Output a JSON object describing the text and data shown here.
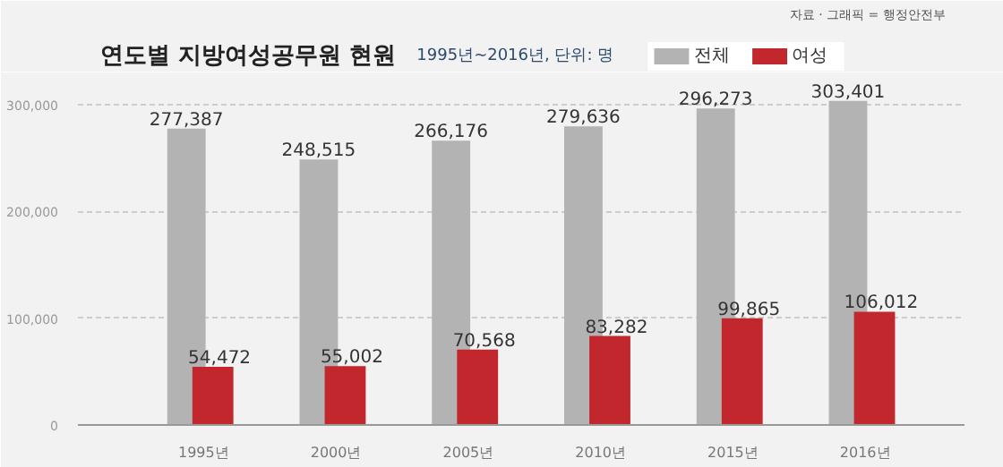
{
  "chart_data": {
    "type": "bar",
    "title": "연도별 지방여성공무원 현원",
    "subtitle": "1995년~2016년, 단위: 명",
    "annotations": [
      "자료 · 그래픽 = 행정안전부"
    ],
    "categories": [
      "1995년",
      "2000년",
      "2005년",
      "2010년",
      "2015년",
      "2016년"
    ],
    "series": [
      {
        "name": "전체",
        "color": "#b3b3b3",
        "values": [
          277387,
          248515,
          266176,
          279636,
          296273,
          303401
        ],
        "value_labels": [
          "277,387",
          "248,515",
          "266,176",
          "279,636",
          "296,273",
          "303,401"
        ]
      },
      {
        "name": "여성",
        "color": "#c1272d",
        "values": [
          54472,
          55002,
          70568,
          83282,
          99865,
          106012
        ],
        "value_labels": [
          "54,472",
          "55,002",
          "70,568",
          "83,282",
          "99,865",
          "106,012"
        ]
      }
    ],
    "ylim": [
      0,
      320000
    ],
    "yticks": [
      0,
      {
        "value": 100000,
        "label": "100,000"
      },
      {
        "value": 200000,
        "label": "200,000"
      },
      {
        "value": 300000,
        "label": "300,000"
      }
    ],
    "grid": "y",
    "legend": "top"
  }
}
